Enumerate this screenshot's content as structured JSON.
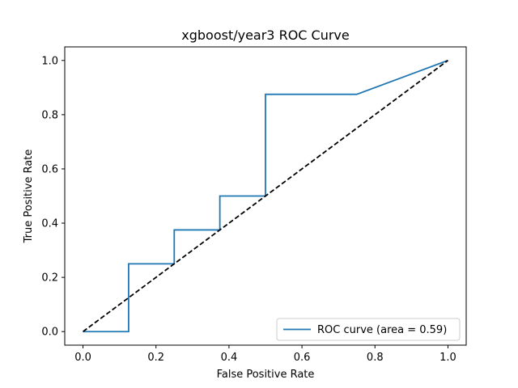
{
  "chart_data": {
    "type": "line",
    "title": "xgboost/year3 ROC Curve",
    "xlabel": "False Positive Rate",
    "ylabel": "True Positive Rate",
    "xlim": [
      -0.05,
      1.05
    ],
    "ylim": [
      -0.05,
      1.05
    ],
    "xticks": [
      "0.0",
      "0.2",
      "0.4",
      "0.6",
      "0.8",
      "1.0"
    ],
    "yticks": [
      "0.0",
      "0.2",
      "0.4",
      "0.6",
      "0.8",
      "1.0"
    ],
    "grid": false,
    "legend_position": "lower-right",
    "series": [
      {
        "name": "ROC curve (area = 0.59)",
        "color": "#1f77b4",
        "style": "solid",
        "x": [
          0.0,
          0.125,
          0.125,
          0.25,
          0.25,
          0.375,
          0.375,
          0.5,
          0.5,
          0.75,
          1.0
        ],
        "y": [
          0.0,
          0.0,
          0.25,
          0.25,
          0.375,
          0.375,
          0.5,
          0.5,
          0.875,
          0.875,
          1.0
        ]
      },
      {
        "color": "#000000",
        "style": "dashed",
        "x": [
          0.0,
          1.0
        ],
        "y": [
          0.0,
          1.0
        ]
      }
    ]
  }
}
